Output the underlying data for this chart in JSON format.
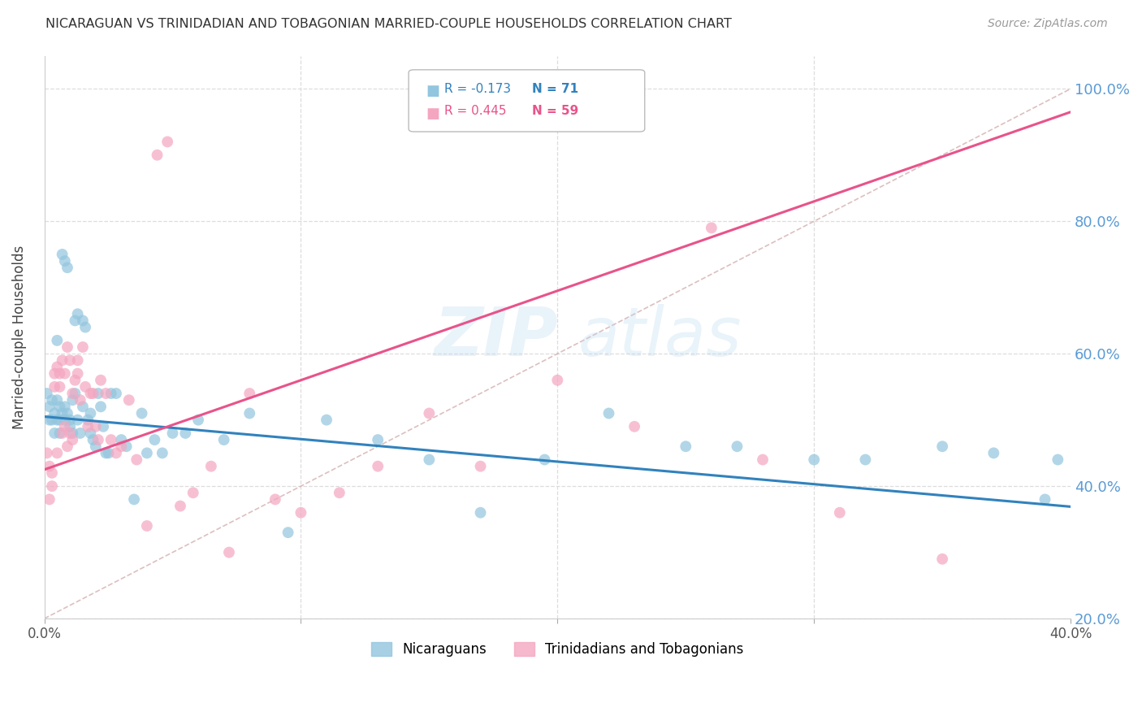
{
  "title": "NICARAGUAN VS TRINIDADIAN AND TOBAGONIAN MARRIED-COUPLE HOUSEHOLDS CORRELATION CHART",
  "source": "Source: ZipAtlas.com",
  "ylabel": "Married-couple Households",
  "xlim": [
    0.0,
    0.4
  ],
  "ylim": [
    0.2,
    1.05
  ],
  "xticks": [
    0.0,
    0.1,
    0.2,
    0.3,
    0.4
  ],
  "xticklabels": [
    "0.0%",
    "",
    "",
    "",
    "40.0%"
  ],
  "yticks": [
    0.2,
    0.4,
    0.6,
    0.8,
    1.0
  ],
  "yticklabels": [
    "20.0%",
    "40.0%",
    "60.0%",
    "80.0%",
    "100.0%"
  ],
  "blue_R": -0.173,
  "blue_N": 71,
  "pink_R": 0.445,
  "pink_N": 59,
  "blue_color": "#92c5de",
  "pink_color": "#f4a6c0",
  "blue_line_color": "#3182bd",
  "pink_line_color": "#e8538a",
  "ref_line_color": "#d4b0b0",
  "legend_blue_label": "Nicaraguans",
  "legend_pink_label": "Trinidadians and Tobagonians",
  "blue_scatter_x": [
    0.001,
    0.002,
    0.002,
    0.003,
    0.003,
    0.004,
    0.004,
    0.005,
    0.005,
    0.005,
    0.006,
    0.006,
    0.006,
    0.007,
    0.007,
    0.008,
    0.008,
    0.008,
    0.009,
    0.009,
    0.01,
    0.01,
    0.011,
    0.011,
    0.012,
    0.012,
    0.013,
    0.013,
    0.014,
    0.015,
    0.015,
    0.016,
    0.017,
    0.018,
    0.018,
    0.019,
    0.02,
    0.021,
    0.022,
    0.023,
    0.024,
    0.025,
    0.026,
    0.028,
    0.03,
    0.032,
    0.035,
    0.038,
    0.04,
    0.043,
    0.046,
    0.05,
    0.055,
    0.06,
    0.07,
    0.08,
    0.095,
    0.11,
    0.13,
    0.15,
    0.17,
    0.195,
    0.22,
    0.25,
    0.27,
    0.3,
    0.32,
    0.35,
    0.37,
    0.39,
    0.395
  ],
  "blue_scatter_y": [
    0.54,
    0.52,
    0.5,
    0.53,
    0.5,
    0.51,
    0.48,
    0.53,
    0.5,
    0.62,
    0.52,
    0.5,
    0.48,
    0.51,
    0.75,
    0.74,
    0.52,
    0.5,
    0.73,
    0.51,
    0.5,
    0.49,
    0.53,
    0.48,
    0.65,
    0.54,
    0.66,
    0.5,
    0.48,
    0.65,
    0.52,
    0.64,
    0.5,
    0.51,
    0.48,
    0.47,
    0.46,
    0.54,
    0.52,
    0.49,
    0.45,
    0.45,
    0.54,
    0.54,
    0.47,
    0.46,
    0.38,
    0.51,
    0.45,
    0.47,
    0.45,
    0.48,
    0.48,
    0.5,
    0.47,
    0.51,
    0.33,
    0.5,
    0.47,
    0.44,
    0.36,
    0.44,
    0.51,
    0.46,
    0.46,
    0.44,
    0.44,
    0.46,
    0.45,
    0.38,
    0.44
  ],
  "pink_scatter_x": [
    0.001,
    0.002,
    0.002,
    0.003,
    0.003,
    0.004,
    0.004,
    0.005,
    0.005,
    0.006,
    0.006,
    0.007,
    0.007,
    0.008,
    0.008,
    0.009,
    0.009,
    0.01,
    0.01,
    0.011,
    0.011,
    0.012,
    0.013,
    0.013,
    0.014,
    0.015,
    0.016,
    0.017,
    0.018,
    0.019,
    0.02,
    0.021,
    0.022,
    0.024,
    0.026,
    0.028,
    0.03,
    0.033,
    0.036,
    0.04,
    0.044,
    0.048,
    0.053,
    0.058,
    0.065,
    0.072,
    0.08,
    0.09,
    0.1,
    0.115,
    0.13,
    0.15,
    0.17,
    0.2,
    0.23,
    0.26,
    0.28,
    0.31,
    0.35
  ],
  "pink_scatter_y": [
    0.45,
    0.43,
    0.38,
    0.42,
    0.4,
    0.57,
    0.55,
    0.58,
    0.45,
    0.57,
    0.55,
    0.48,
    0.59,
    0.57,
    0.49,
    0.46,
    0.61,
    0.59,
    0.48,
    0.54,
    0.47,
    0.56,
    0.59,
    0.57,
    0.53,
    0.61,
    0.55,
    0.49,
    0.54,
    0.54,
    0.49,
    0.47,
    0.56,
    0.54,
    0.47,
    0.45,
    0.46,
    0.53,
    0.44,
    0.34,
    0.9,
    0.92,
    0.37,
    0.39,
    0.43,
    0.3,
    0.54,
    0.38,
    0.36,
    0.39,
    0.43,
    0.51,
    0.43,
    0.56,
    0.49,
    0.79,
    0.44,
    0.36,
    0.29
  ],
  "background_color": "#ffffff",
  "grid_color": "#dddddd"
}
